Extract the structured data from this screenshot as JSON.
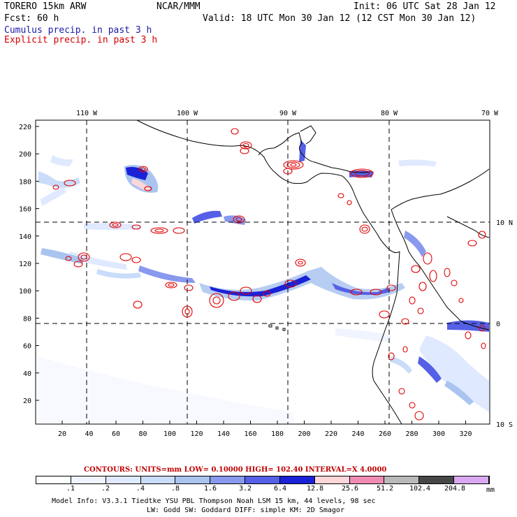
{
  "header": {
    "model": "TORERO  15km ARW",
    "org": "NCAR/MMM",
    "init": "Init: 06 UTC Sat 28 Jan 12",
    "fcst": "Fcst:   60 h",
    "valid": "Valid: 18 UTC Mon 30 Jan 12 (12 CST Mon 30 Jan 12)",
    "line_cumulus": "Cumulus precip. in past 3 h",
    "line_explicit": "Explicit precip. in past 3 h"
  },
  "colors": {
    "cumulus_text": "#1a1aa6",
    "explicit_text": "#d40000",
    "contour": "#e00000"
  },
  "map": {
    "lon_labels": [
      "110 W",
      "100 W",
      "90 W",
      "80 W",
      "70 W"
    ],
    "lat_labels": [
      "10 N",
      "0",
      "10 S"
    ],
    "y_ticks": [
      "220",
      "200",
      "180",
      "160",
      "140",
      "120",
      "100",
      "80",
      "60",
      "40",
      "20"
    ],
    "x_ticks": [
      "20",
      "40",
      "60",
      "80",
      "100",
      "120",
      "140",
      "160",
      "180",
      "200",
      "220",
      "240",
      "260",
      "280",
      "300",
      "320"
    ]
  },
  "contour_info": {
    "text": "CONTOURS:  UNITS=mm  LOW= 0.10000      HIGH=  102.40      INTERVAL=X  4.0000"
  },
  "colorbar": {
    "labels": [
      ".1",
      ".2",
      ".4",
      ".8",
      "1.6",
      "3.2",
      "6.4",
      "12.8",
      "25.6",
      "51.2",
      "102.4",
      "204.8"
    ],
    "unit": "mm",
    "colors": [
      "#ffffff",
      "#f0f4ff",
      "#dfe9ff",
      "#c9ddfa",
      "#aac4f0",
      "#8899ee",
      "#5560e6",
      "#1a22d8",
      "#fcd6d8",
      "#f08cb4",
      "#b9b9b9",
      "#474747",
      "#d9a8f0"
    ]
  },
  "footer": {
    "line1": "Model Info: V3.3.1    Tiedtke YSU PBL  Thompson    Noah LSM  15 km,   44 levels,   98 sec",
    "line2": "LW: Godd SW: Goddard DIFF: simple KM: 2D Smagor"
  }
}
